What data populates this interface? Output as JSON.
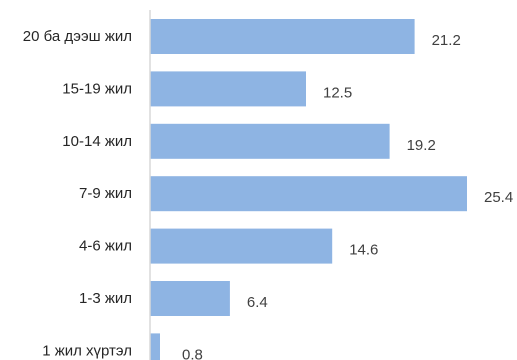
{
  "chart_data": {
    "type": "bar",
    "orientation": "horizontal",
    "categories": [
      "20 ба дээш жил",
      "15-19 жил",
      "10-14 жил",
      "7-9 жил",
      "4-6 жил",
      "1-3 жил",
      "1 жил хүртэл"
    ],
    "values": [
      21.2,
      12.5,
      19.2,
      25.4,
      14.6,
      6.4,
      0.8
    ],
    "value_labels": [
      "21.2",
      "12.5",
      "19.2",
      "25.4",
      "14.6",
      "6.4",
      "0.8"
    ],
    "title": "",
    "xlabel": "",
    "ylabel": "",
    "xlim": [
      0,
      25.4
    ],
    "grid": false,
    "legend": "none",
    "bar_color": "#8EB4E3",
    "axis_color": "#D9D9D9"
  }
}
